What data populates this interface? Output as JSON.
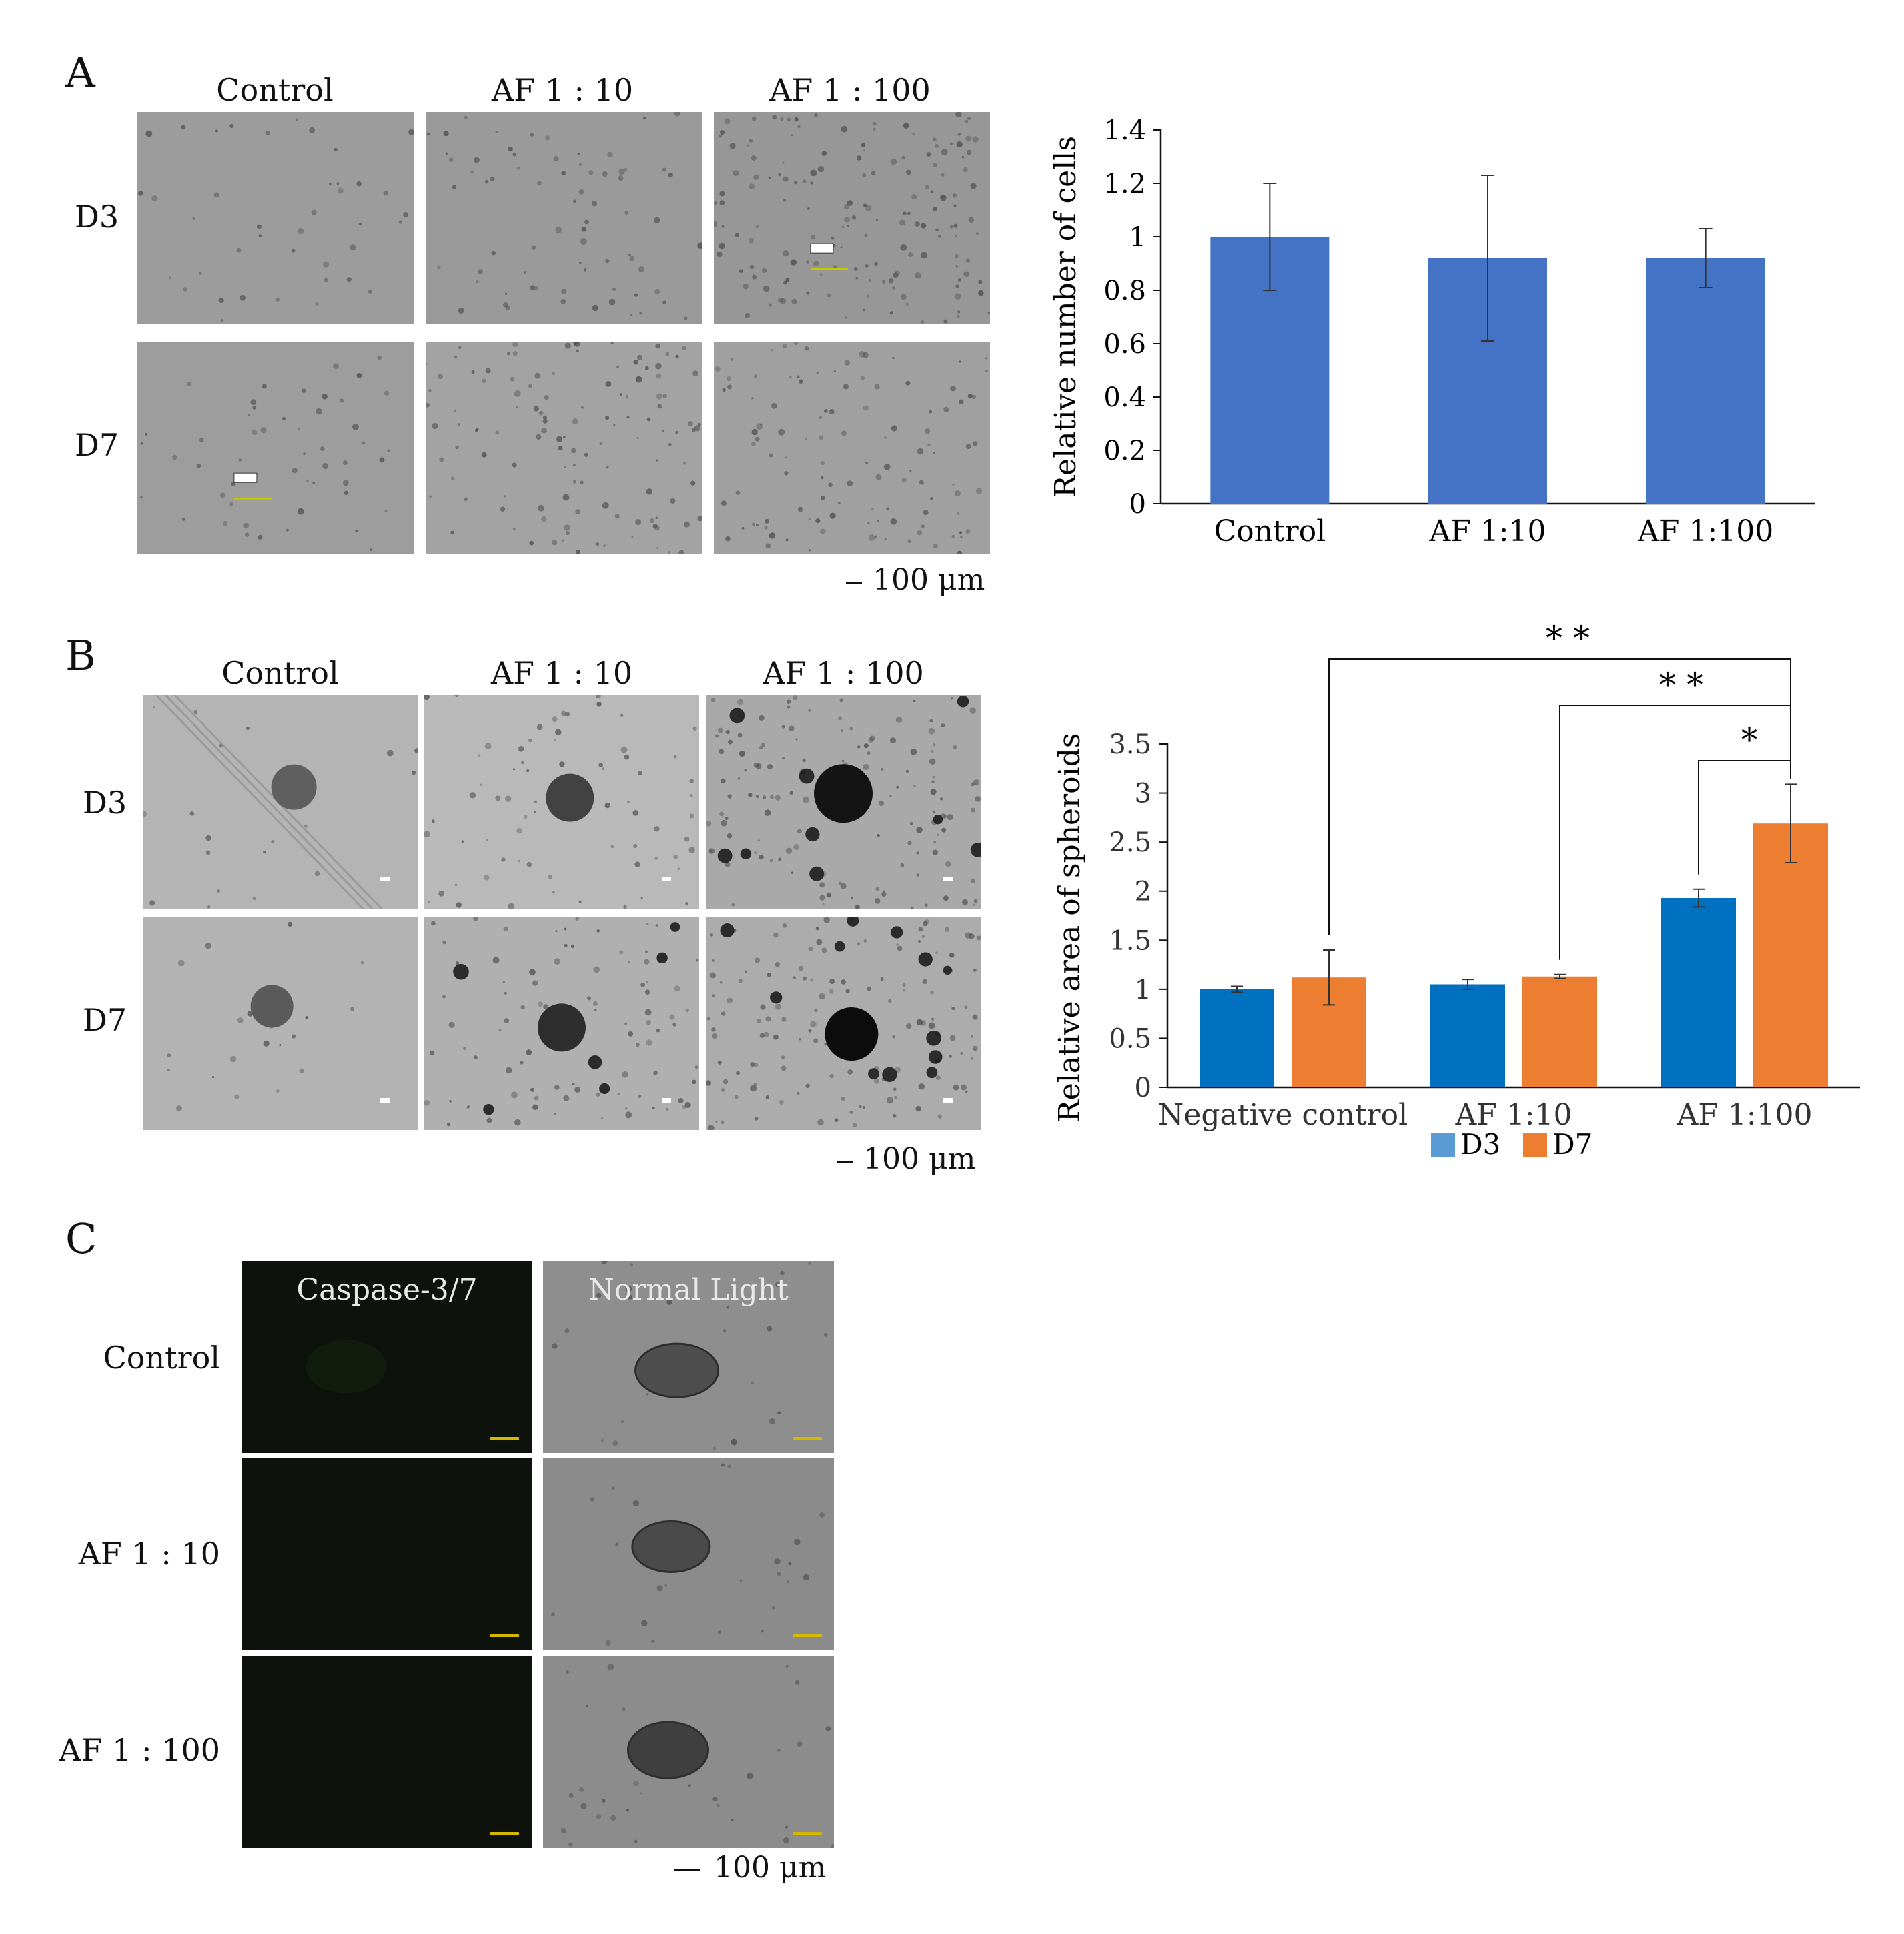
{
  "panels": {
    "A": {
      "letter": "A",
      "columns": [
        "Control",
        "AF 1 : 10",
        "AF 1 : 100"
      ],
      "rows": [
        "D3",
        "D7"
      ],
      "scale_bar": "100 μm"
    },
    "B": {
      "letter": "B",
      "columns": [
        "Control",
        "AF 1 : 10",
        "AF 1 : 100"
      ],
      "rows": [
        "D3",
        "D7"
      ],
      "scale_bar": "100 μm"
    },
    "C": {
      "letter": "C",
      "columns": [
        "Caspase-3/7",
        "Normal Light"
      ],
      "rows": [
        "Control",
        "AF 1 : 10",
        "AF 1 : 100"
      ],
      "scale_bar": "100 μm"
    }
  },
  "colors": {
    "bar_a": "#4472C4",
    "d3": "#0070C0",
    "d7": "#ED7D31",
    "d3_legend": "#5B9BD5",
    "caspase_bg": "#0d130c",
    "scale_yellow": "#d4b800"
  },
  "chart_data": [
    {
      "type": "bar",
      "categories": [
        "Control",
        "AF 1:10",
        "AF 1:100"
      ],
      "values": [
        1.0,
        0.92,
        0.92
      ],
      "errors": [
        0.2,
        0.31,
        0.11
      ],
      "ylabel": "Relative number of cells",
      "ylim": [
        0,
        1.4
      ],
      "yticks": [
        0,
        0.2,
        0.4,
        0.6,
        0.8,
        1,
        1.2,
        1.4
      ],
      "ytick_labels": [
        "0",
        "0.2",
        "0.4",
        "0.6",
        "0.8",
        "1",
        "1.2",
        "1.4"
      ],
      "grid": false
    },
    {
      "type": "bar",
      "categories": [
        "Negative control",
        "AF 1:10",
        "AF 1:100"
      ],
      "series": [
        {
          "name": "D3",
          "values": [
            1.0,
            1.05,
            1.93
          ],
          "errors": [
            0.03,
            0.05,
            0.09
          ]
        },
        {
          "name": "D7",
          "values": [
            1.12,
            1.13,
            2.69
          ],
          "errors": [
            0.28,
            0.02,
            0.4
          ]
        }
      ],
      "ylabel": "Relative area of spheroids",
      "ylim": [
        0,
        3.5
      ],
      "yticks": [
        0,
        0.5,
        1,
        1.5,
        2,
        2.5,
        3,
        3.5
      ],
      "ytick_labels": [
        "0",
        "0.5",
        "1",
        "1.5",
        "2",
        "2.5",
        "3",
        "3.5"
      ],
      "legend_placement": "bottom",
      "significance": [
        {
          "label": "* *",
          "from": "Negative control D7",
          "to": "AF 1:100 D7"
        },
        {
          "label": "* *",
          "from": "AF 1:10 D7",
          "to": "AF 1:100 D7"
        },
        {
          "label": "*",
          "from": "AF 1:100 D3",
          "to": "AF 1:100 D7"
        }
      ],
      "grid": false
    }
  ]
}
